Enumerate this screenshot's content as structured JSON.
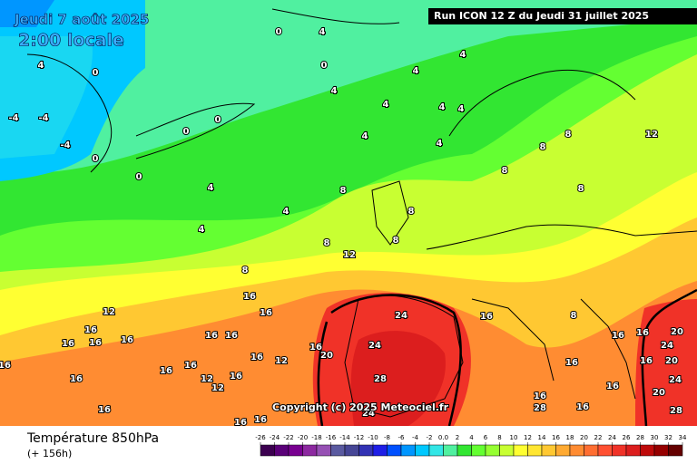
{
  "header": {
    "run": "Run ICON 12 Z du Jeudi 31 juillet 2025",
    "date": "Jeudi 7 août 2025",
    "time": "2:00 locale",
    "copyright": "Copyright (c) 2025 Meteociel.fr"
  },
  "footer": {
    "title": "Température 850hPa",
    "lead": "(+ 156h)"
  },
  "scale": {
    "ticks": [
      -26,
      -24,
      -22,
      -20,
      -18,
      -16,
      -14,
      -12,
      -10,
      -8,
      -6,
      -4,
      -2,
      {
        "value": 0,
        "label": "0.0"
      },
      2,
      4,
      6,
      8,
      10,
      12,
      14,
      16,
      18,
      20,
      22,
      24,
      26,
      28,
      30,
      32,
      34
    ],
    "colors": [
      "#3c0050",
      "#5a0078",
      "#780090",
      "#8c28a0",
      "#9650b4",
      "#5a5aa0",
      "#464696",
      "#3232b4",
      "#1e1ee6",
      "#0050ff",
      "#0096ff",
      "#00c8ff",
      "#32e6e6",
      "#50f0a0",
      "#32e632",
      "#64ff32",
      "#96ff32",
      "#c8ff32",
      "#ffff32",
      "#ffe632",
      "#ffc832",
      "#ffaa32",
      "#ff8c32",
      "#ff6e32",
      "#ff5032",
      "#f03228",
      "#dc1e1e",
      "#be0a0a",
      "#960000",
      "#640000"
    ]
  },
  "contour_labels": [
    "0",
    "4",
    "4",
    "0",
    "-4",
    "-4",
    "-4",
    "0",
    "0",
    "0",
    "0",
    "0",
    "4",
    "4",
    "4",
    "4",
    "4",
    "4",
    "4",
    "4",
    "4",
    "4",
    "4",
    "8",
    "8",
    "8",
    "8",
    "8",
    "8",
    "8",
    "8",
    "8",
    "12",
    "12",
    "12",
    "16",
    "16",
    "16",
    "16",
    "16",
    "16",
    "16",
    "16",
    "16",
    "16",
    "16",
    "16",
    "16",
    "16",
    "16",
    "16",
    "24",
    "24",
    "28",
    "20",
    "16",
    "20",
    "24",
    "20",
    "20",
    "28",
    "24",
    "24",
    "16",
    "16",
    "16",
    "16",
    "28",
    "16",
    "16",
    "16",
    "12",
    "12",
    "12",
    "16",
    "16",
    "8"
  ]
}
